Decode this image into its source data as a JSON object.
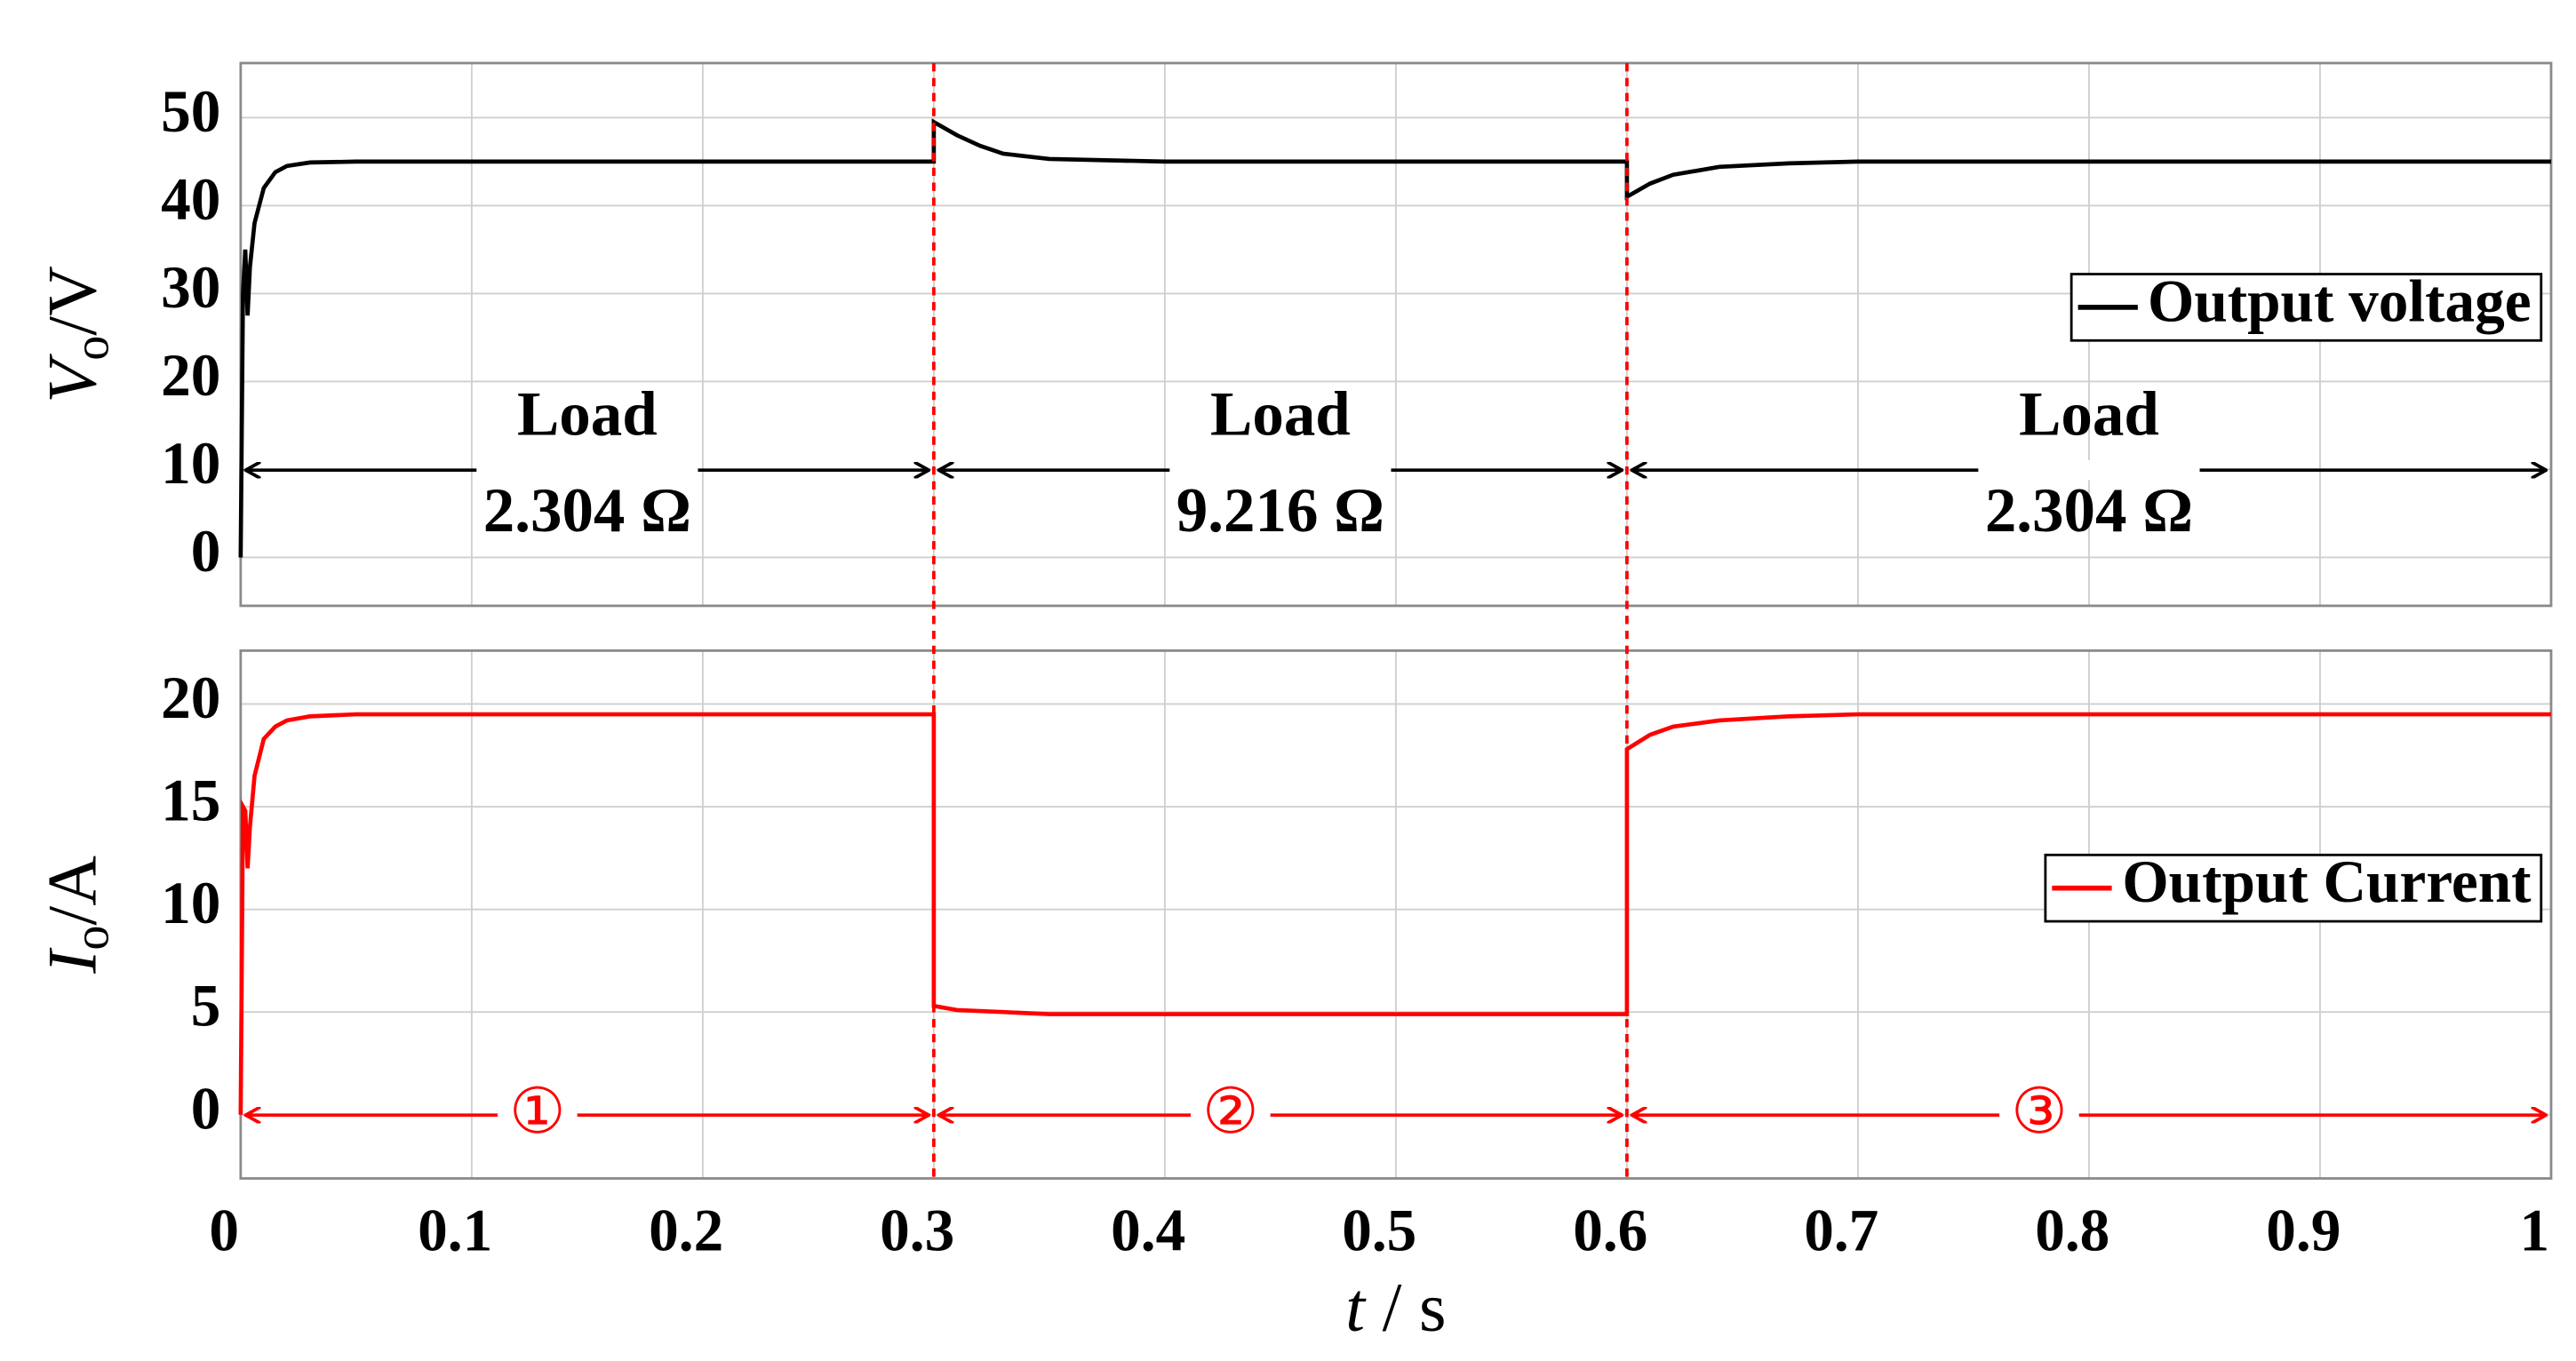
{
  "chart_data": [
    {
      "type": "line",
      "ylabel_parts": [
        "V",
        "o",
        "/V"
      ],
      "x": [
        0,
        0.001,
        0.002,
        0.003,
        0.004,
        0.006,
        0.01,
        0.015,
        0.02,
        0.03,
        0.05,
        0.3,
        0.3,
        0.31,
        0.32,
        0.33,
        0.35,
        0.4,
        0.6,
        0.6,
        0.61,
        0.62,
        0.64,
        0.67,
        0.7,
        1
      ],
      "series": [
        {
          "name": "Output voltage",
          "color": "#000000",
          "values": [
            0,
            30,
            35,
            27.5,
            33,
            38,
            42,
            43.8,
            44.5,
            44.9,
            45,
            45,
            49.5,
            48,
            46.8,
            45.9,
            45.3,
            45,
            45,
            41,
            42.5,
            43.5,
            44.4,
            44.8,
            45,
            45
          ]
        }
      ],
      "xlim": [
        0,
        1
      ],
      "xticks": [
        0,
        0.1,
        0.2,
        0.3,
        0.4,
        0.5,
        0.6,
        0.7,
        0.8,
        0.9,
        1
      ],
      "ylim": [
        -5.5,
        56.2
      ],
      "yticks": [
        0,
        10,
        20,
        30,
        40,
        50
      ],
      "grid": true,
      "legend": "right",
      "vlines": [
        0.3,
        0.6
      ],
      "vline_color": "#ff0000",
      "annotations": [
        {
          "label": "Load",
          "value": "2.304 Ω"
        },
        {
          "label": "Load",
          "value": "9.216 Ω"
        },
        {
          "label": "Load",
          "value": "2.304 Ω"
        }
      ]
    },
    {
      "type": "line",
      "ylabel_parts": [
        "I",
        "o",
        "/A"
      ],
      "xlabel_parts": [
        "t",
        " / s"
      ],
      "x": [
        0,
        0.001,
        0.002,
        0.003,
        0.004,
        0.006,
        0.01,
        0.015,
        0.02,
        0.03,
        0.05,
        0.3,
        0.3,
        0.31,
        0.33,
        0.35,
        0.4,
        0.6,
        0.6,
        0.61,
        0.62,
        0.64,
        0.67,
        0.7,
        1
      ],
      "series": [
        {
          "name": "Output Current",
          "color": "#ff0000",
          "values": [
            0,
            15,
            14.8,
            12,
            14,
            16.5,
            18.3,
            18.9,
            19.2,
            19.4,
            19.5,
            19.5,
            5.3,
            5.1,
            5,
            4.9,
            4.9,
            4.9,
            17.8,
            18.5,
            18.9,
            19.2,
            19.4,
            19.5,
            19.5
          ]
        }
      ],
      "xlim": [
        0,
        1
      ],
      "xticks": [
        0,
        0.1,
        0.2,
        0.3,
        0.4,
        0.5,
        0.6,
        0.7,
        0.8,
        0.9,
        1
      ],
      "ylim": [
        -3.1,
        22.6
      ],
      "yticks": [
        0,
        5,
        10,
        15,
        20
      ],
      "grid": true,
      "legend": "right",
      "vlines": [
        0.3,
        0.6
      ],
      "vline_color": "#ff0000",
      "annotations": [
        {
          "label": "①"
        },
        {
          "label": "②"
        },
        {
          "label": "③"
        }
      ]
    }
  ]
}
